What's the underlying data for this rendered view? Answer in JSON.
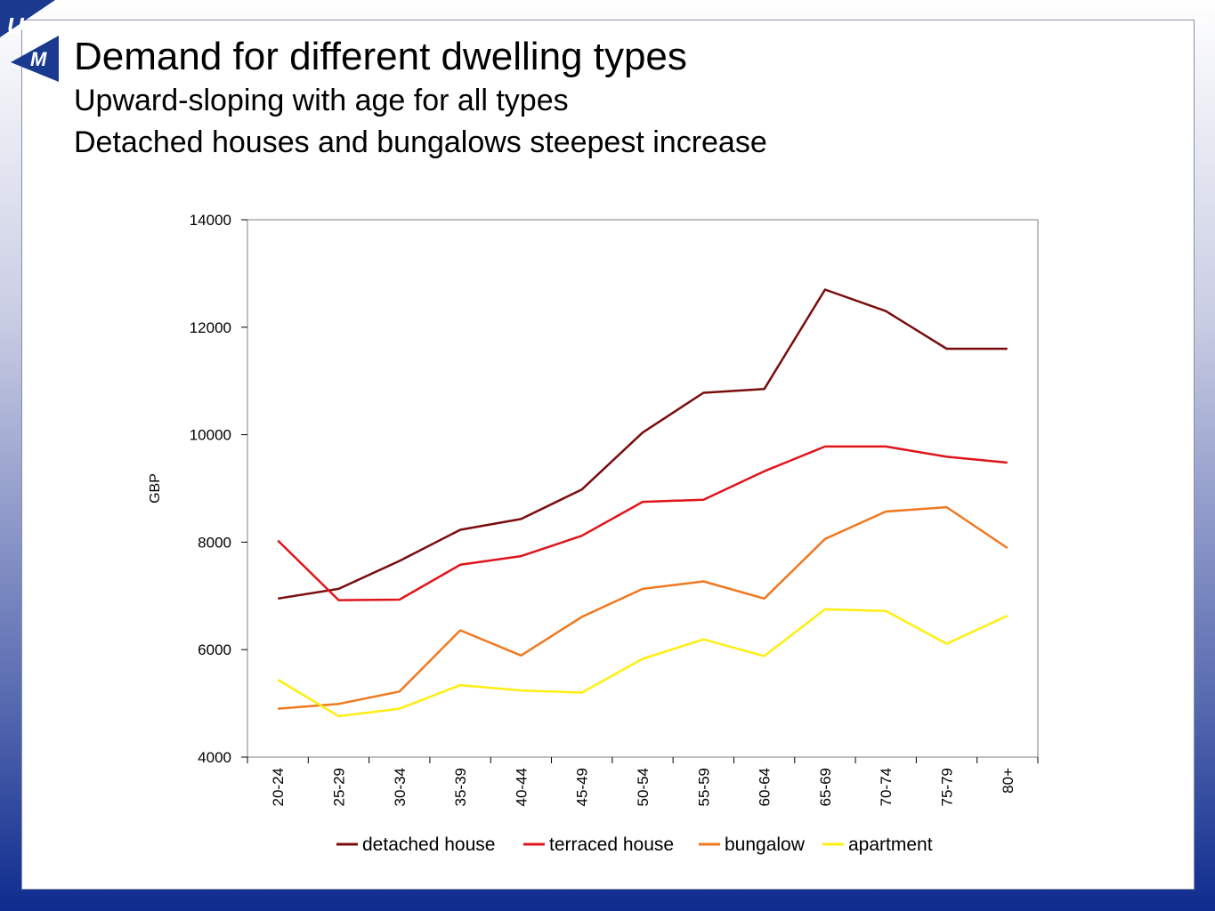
{
  "slide": {
    "title": "Demand for different dwelling types",
    "subtitles": [
      "Upward-sloping with age for all types",
      "Detached houses and bungalows steepest increase"
    ]
  },
  "logo": {
    "letter_top": "U",
    "letter_bottom": "M",
    "color": "#1a3a8f"
  },
  "chart_data": {
    "type": "line",
    "title": "",
    "xlabel": "",
    "ylabel": "GBP",
    "ylim": [
      4000,
      14000
    ],
    "yticks": [
      4000,
      6000,
      8000,
      10000,
      12000,
      14000
    ],
    "grid": false,
    "legend_position": "bottom",
    "categories": [
      "20-24",
      "25-29",
      "30-34",
      "35-39",
      "40-44",
      "45-49",
      "50-54",
      "55-59",
      "60-64",
      "65-69",
      "70-74",
      "75-79",
      "80+"
    ],
    "series": [
      {
        "name": "detached house",
        "color": "#7a0c0c",
        "values": [
          6950,
          7130,
          7650,
          8230,
          8430,
          8980,
          10040,
          10780,
          10850,
          12700,
          12300,
          11600,
          11600
        ]
      },
      {
        "name": "terraced house",
        "color": "#e0141b",
        "values": [
          8030,
          6920,
          6930,
          7580,
          7740,
          8120,
          8750,
          8790,
          9320,
          9780,
          9780,
          9590,
          9480
        ]
      },
      {
        "name": "bungalow",
        "color": "#f07820",
        "values": [
          4900,
          4990,
          5220,
          6360,
          5890,
          6610,
          7130,
          7270,
          6950,
          8060,
          8570,
          8650,
          7890
        ]
      },
      {
        "name": "apartment",
        "color": "#ffee10",
        "values": [
          5440,
          4760,
          4900,
          5340,
          5240,
          5200,
          5830,
          6190,
          5880,
          6750,
          6720,
          6110,
          6630
        ]
      }
    ]
  }
}
